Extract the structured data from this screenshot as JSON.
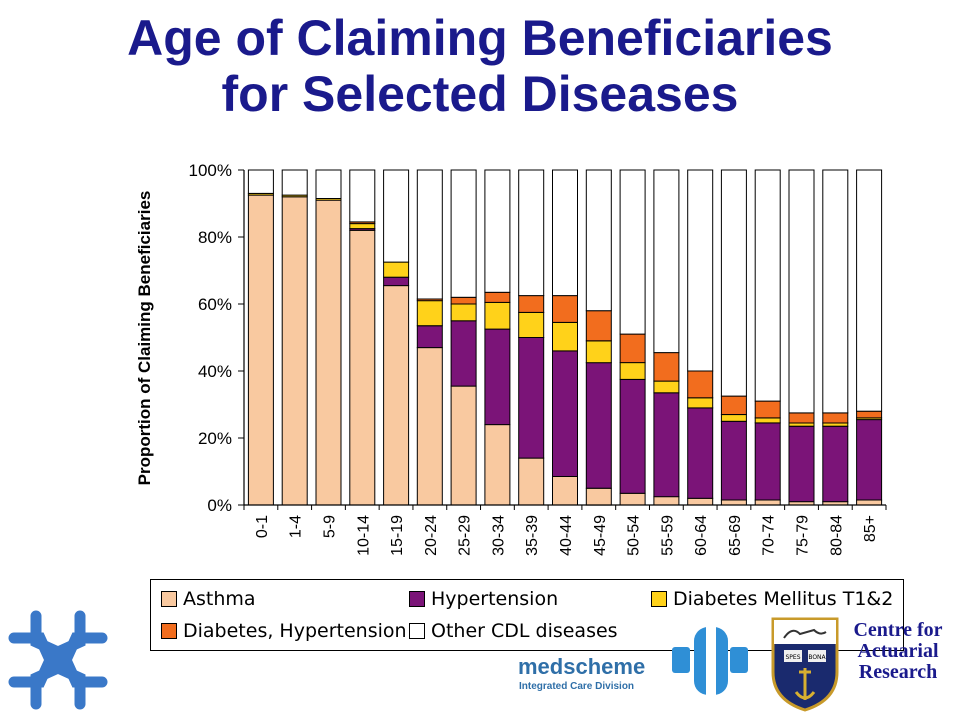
{
  "title": {
    "line1": "Age of Claiming Beneficiaries",
    "line2": "for Selected Diseases"
  },
  "chart_data": {
    "type": "bar",
    "stacked": true,
    "percent": true,
    "categories": [
      "0-1",
      "1-4",
      "5-9",
      "10-14",
      "15-19",
      "20-24",
      "25-29",
      "30-34",
      "35-39",
      "40-44",
      "45-49",
      "50-54",
      "55-59",
      "60-64",
      "65-69",
      "70-74",
      "75-79",
      "80-84",
      "85+"
    ],
    "series": [
      {
        "name": "Asthma",
        "color": "#f9c9a0",
        "values": [
          92.5,
          92,
          91,
          82,
          65.5,
          47,
          35.5,
          24,
          14,
          8.5,
          5,
          3.5,
          2.5,
          2,
          1.5,
          1.5,
          1,
          1,
          1.5
        ]
      },
      {
        "name": "Hypertension",
        "color": "#7b1478",
        "values": [
          0,
          0,
          0,
          0.5,
          2.5,
          6.5,
          19.5,
          28.5,
          36,
          37.5,
          37.5,
          34,
          31,
          27,
          23.5,
          23,
          22.5,
          22.5,
          24
        ]
      },
      {
        "name": "Diabetes Mellitus T1&2",
        "color": "#ffd21a",
        "values": [
          0.5,
          0.5,
          0.5,
          1.5,
          4.5,
          7.5,
          5,
          8,
          7.5,
          8.5,
          6.5,
          5,
          3.5,
          3,
          2,
          1.5,
          1,
          1,
          0.5
        ]
      },
      {
        "name": "Diabetes, Hypertension",
        "color": "#f26d1e",
        "values": [
          0,
          0,
          0,
          0.5,
          0,
          0.5,
          2,
          3,
          5,
          8,
          9,
          8.5,
          8.5,
          8,
          5.5,
          5,
          3,
          3,
          2
        ]
      },
      {
        "name": "Other CDL diseases",
        "color": "#ffffff",
        "values": [
          7,
          7.5,
          8.5,
          15.5,
          27.5,
          38.5,
          38,
          36.5,
          37.5,
          37.5,
          42,
          49,
          54.5,
          60,
          67.5,
          69,
          72.5,
          72.5,
          72
        ]
      }
    ],
    "ylabel": "Proportion of Claiming Beneficiaries",
    "xlabel": "",
    "ylim": [
      0,
      100
    ],
    "yticks": [
      "0%",
      "20%",
      "40%",
      "60%",
      "80%",
      "100%"
    ],
    "grid": false,
    "legend_position": "bottom"
  },
  "legend": {
    "rows": [
      [
        {
          "label": "Asthma",
          "color": "#f9c9a0"
        },
        {
          "label": "Hypertension",
          "color": "#7b1478"
        },
        {
          "label": "Diabetes Mellitus T1&2",
          "color": "#ffd21a"
        }
      ],
      [
        {
          "label": "Diabetes, Hypertension",
          "color": "#f26d1e"
        },
        {
          "label": "Other CDL diseases",
          "color": "#ffffff"
        }
      ]
    ]
  },
  "logos": {
    "medscheme_name": "medscheme",
    "medscheme_division": "Integrated Care Division",
    "car_line1": "Centre for",
    "car_line2": "Actuarial",
    "car_line3": "Research",
    "crest_motto_left": "SPES",
    "crest_motto_right": "BONA"
  },
  "colors": {
    "title": "#1a1a8c",
    "medscheme": "#2f6fa8",
    "left_logo": "#3a78c8"
  }
}
